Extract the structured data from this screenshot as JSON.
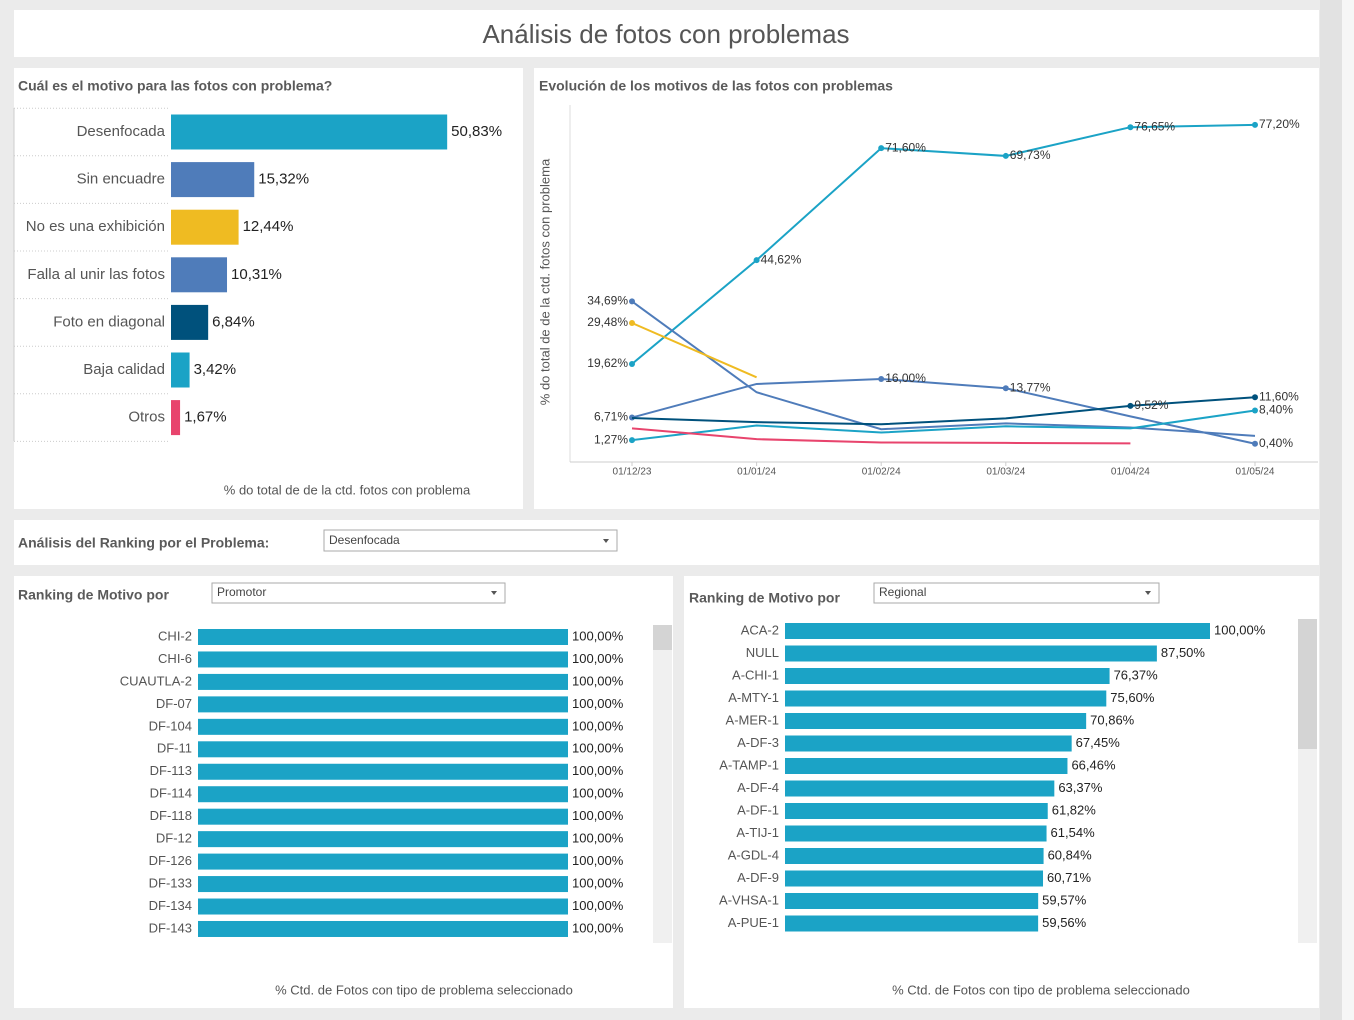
{
  "title": "Análisis de fotos con problemas",
  "filter": {
    "label": "Análisis del Ranking por el Problema:",
    "value": "Desenfocada"
  },
  "chart_data": [
    {
      "type": "bar",
      "title": "Cuál es el motivo para las fotos con problema?",
      "categories": [
        "Desenfocada",
        "Sin encuadre",
        "No es una exhibición",
        "Falla al unir las fotos",
        "Foto en diagonal",
        "Baja calidad",
        "Otros"
      ],
      "values": [
        50.83,
        15.32,
        12.44,
        10.31,
        6.84,
        3.42,
        1.67
      ],
      "value_labels": [
        "50,83%",
        "15,32%",
        "12,44%",
        "10,31%",
        "6,84%",
        "3,42%",
        "1,67%"
      ],
      "colors": [
        "#1ba3c6",
        "#4f7cba",
        "#efbb22",
        "#4f7cba",
        "#00517c",
        "#1ba3c6",
        "#e8446d"
      ],
      "xlim": [
        0,
        60
      ],
      "x_label": "% do total de de la ctd. fotos con problema"
    },
    {
      "type": "line",
      "title": "Evolución de los motivos de las fotos con problemas",
      "y_label": "% do total de de la ctd. fotos con problema",
      "x": [
        "01/12/23",
        "01/01/24",
        "01/02/24",
        "01/03/24",
        "01/04/24",
        "01/05/24"
      ],
      "ylim": [
        -4,
        82
      ],
      "series": [
        {
          "color": "#1ba3c6",
          "values": [
            19.62,
            44.62,
            71.6,
            69.73,
            76.65,
            77.2
          ],
          "value_labels": [
            "19,62%",
            "44,62%",
            "71,60%",
            "69,73%",
            "76,65%",
            "77,20%"
          ]
        },
        {
          "color": "#4f7cba",
          "values": [
            34.69,
            12.8,
            3.9,
            5.3,
            4.3,
            2.3
          ],
          "value_labels": [
            "34,69%",
            null,
            null,
            null,
            null,
            null
          ]
        },
        {
          "color": "#efbb22",
          "values": [
            29.48,
            16.4,
            null,
            null,
            null,
            null
          ],
          "value_labels": [
            "29,48%",
            null,
            null,
            null,
            null,
            null
          ]
        },
        {
          "color": "#4f7cba",
          "values": [
            6.71,
            14.8,
            16.0,
            13.77,
            7.0,
            0.4
          ],
          "value_labels": [
            "6,71%",
            null,
            "16,00%",
            "13,77%",
            null,
            "0,40%"
          ]
        },
        {
          "color": "#00517c",
          "values": [
            6.6,
            5.6,
            5.1,
            6.5,
            9.52,
            11.6
          ],
          "value_labels": [
            null,
            null,
            null,
            null,
            "9,52%",
            "11,60%"
          ]
        },
        {
          "color": "#1ba3c6",
          "values": [
            1.27,
            4.8,
            3.1,
            4.6,
            4.1,
            8.4
          ],
          "value_labels": [
            "1,27%",
            null,
            null,
            null,
            null,
            "8,40%"
          ]
        },
        {
          "color": "#e8446d",
          "values": [
            4.1,
            1.5,
            0.7,
            0.6,
            0.5,
            null
          ],
          "value_labels": [
            null,
            null,
            null,
            null,
            null,
            null
          ]
        }
      ]
    },
    {
      "type": "bar",
      "title": "Ranking de Motivo por",
      "dropdown": "Promotor",
      "categories": [
        "CHI-2",
        "CHI-6",
        "CUAUTLA-2",
        "DF-07",
        "DF-104",
        "DF-11",
        "DF-113",
        "DF-114",
        "DF-118",
        "DF-12",
        "DF-126",
        "DF-133",
        "DF-134",
        "DF-143"
      ],
      "values": [
        100,
        100,
        100,
        100,
        100,
        100,
        100,
        100,
        100,
        100,
        100,
        100,
        100,
        100
      ],
      "value_labels": [
        "100,00%",
        "100,00%",
        "100,00%",
        "100,00%",
        "100,00%",
        "100,00%",
        "100,00%",
        "100,00%",
        "100,00%",
        "100,00%",
        "100,00%",
        "100,00%",
        "100,00%",
        "100,00%"
      ],
      "color": "#1ba3c6",
      "xlim": [
        0,
        100
      ],
      "x_label": "% Ctd. de Fotos con tipo de problema seleccionado"
    },
    {
      "type": "bar",
      "title": "Ranking de Motivo por",
      "dropdown": "Regional",
      "categories": [
        "ACA-2",
        "NULL",
        "A-CHI-1",
        "A-MTY-1",
        "A-MER-1",
        "A-DF-3",
        "A-TAMP-1",
        "A-DF-4",
        "A-DF-1",
        "A-TIJ-1",
        "A-GDL-4",
        "A-DF-9",
        "A-VHSA-1",
        "A-PUE-1"
      ],
      "values": [
        100,
        87.5,
        76.37,
        75.6,
        70.86,
        67.45,
        66.46,
        63.37,
        61.82,
        61.54,
        60.84,
        60.71,
        59.57,
        59.56
      ],
      "value_labels": [
        "100,00%",
        "87,50%",
        "76,37%",
        "75,60%",
        "70,86%",
        "67,45%",
        "66,46%",
        "63,37%",
        "61,82%",
        "61,54%",
        "60,84%",
        "60,71%",
        "59,57%",
        "59,56%"
      ],
      "color": "#1ba3c6",
      "xlim": [
        0,
        100
      ],
      "x_label": "% Ctd. de Fotos con tipo de problema seleccionado"
    }
  ]
}
